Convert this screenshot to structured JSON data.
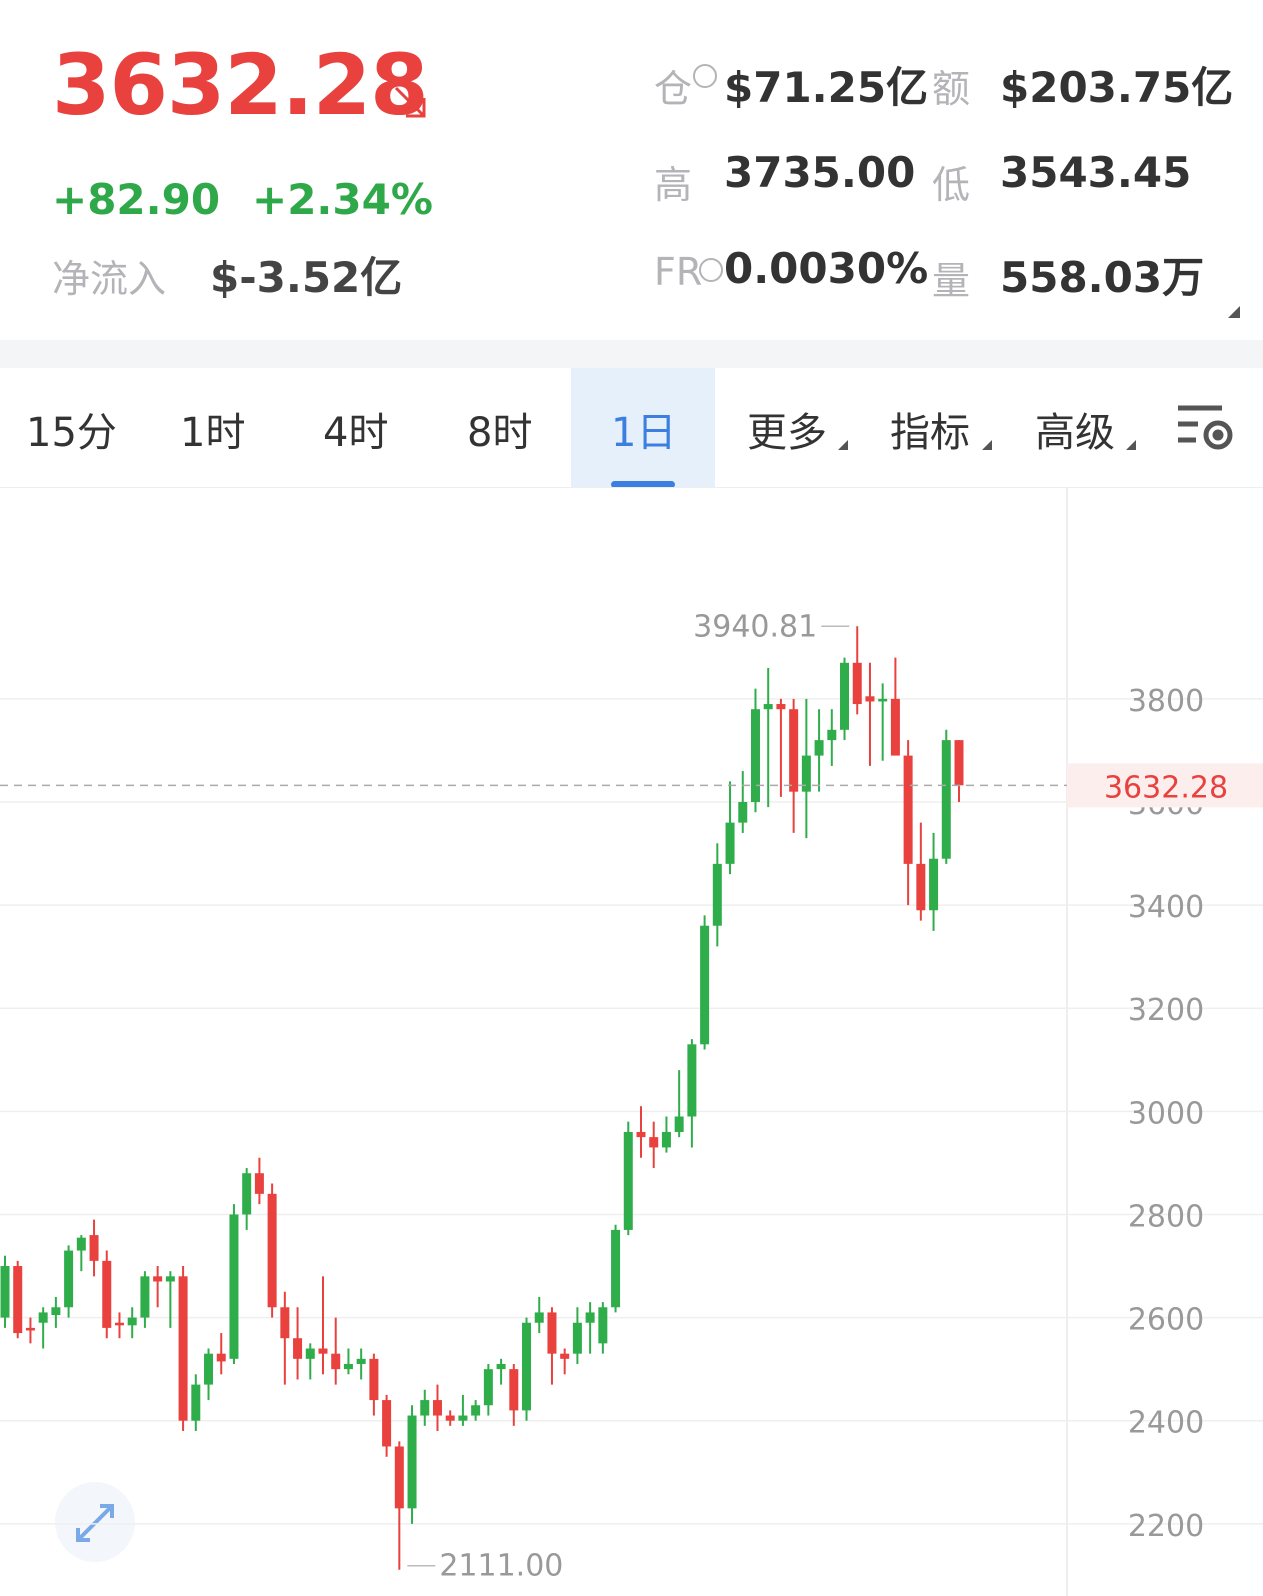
{
  "header": {
    "price": "3632.28",
    "change": "+82.90",
    "change_pct": "+2.34%",
    "net_inflow_label": "净流入",
    "net_inflow": "$-3.52亿",
    "stats": [
      {
        "label": "仓",
        "value": "$71.25亿"
      },
      {
        "label": "额",
        "value": "$203.75亿"
      },
      {
        "label": "高",
        "value": "3735.00"
      },
      {
        "label": "低",
        "value": "3543.45"
      },
      {
        "label": "FR",
        "value": "0.0030%"
      },
      {
        "label": "量",
        "value": "558.03万"
      }
    ]
  },
  "tabs": [
    "15分",
    "1时",
    "4时",
    "8时",
    "1日",
    "更多",
    "指标",
    "高级"
  ],
  "chart_data": {
    "type": "candlestick",
    "up_color": "#2fad4b",
    "down_color": "#e8413e",
    "ylim": [
      2060,
      4209
    ],
    "yticks": [
      2200,
      2400,
      2600,
      2800,
      3000,
      3200,
      3400,
      3600,
      3800
    ],
    "grid": true,
    "last_price": 3632.28,
    "high_label": "3940.81",
    "low_label": "2111.00",
    "open": [
      2600,
      2700,
      2580,
      2590,
      2605,
      2620,
      2730,
      2760,
      2710,
      2590,
      2585,
      2600,
      2680,
      2670,
      2680,
      2400,
      2470,
      2530,
      2520,
      2800,
      2880,
      2840,
      2620,
      2560,
      2520,
      2540,
      2530,
      2500,
      2510,
      2520,
      2440,
      2350,
      2230,
      2410,
      2440,
      2410,
      2400,
      2410,
      2430,
      2500,
      2500,
      2420,
      2590,
      2610,
      2530,
      2530,
      2590,
      2550,
      2620,
      2770,
      2960,
      2950,
      2930,
      2960,
      2990,
      3130,
      3360,
      3480,
      3560,
      3600,
      3780,
      3790,
      3780,
      3620,
      3690,
      3720,
      3740,
      3870,
      3805,
      3795,
      3800,
      3690,
      3480,
      3390,
      3490,
      3720
    ],
    "high": [
      2720,
      2710,
      2600,
      2620,
      2640,
      2740,
      2760,
      2790,
      2730,
      2610,
      2620,
      2690,
      2700,
      2690,
      2700,
      2490,
      2540,
      2570,
      2820,
      2890,
      2910,
      2860,
      2650,
      2620,
      2550,
      2680,
      2600,
      2540,
      2540,
      2530,
      2450,
      2360,
      2430,
      2460,
      2470,
      2420,
      2450,
      2440,
      2510,
      2520,
      2510,
      2600,
      2640,
      2620,
      2540,
      2620,
      2630,
      2630,
      2780,
      2980,
      3010,
      2980,
      2990,
      3080,
      3140,
      3380,
      3520,
      3640,
      3660,
      3820,
      3860,
      3800,
      3800,
      3800,
      3780,
      3780,
      3880,
      3940.81,
      3870,
      3830,
      3880,
      3720,
      3560,
      3540,
      3740,
      3720
    ],
    "low": [
      2580,
      2560,
      2550,
      2540,
      2580,
      2600,
      2690,
      2680,
      2560,
      2560,
      2560,
      2580,
      2620,
      2580,
      2380,
      2380,
      2440,
      2490,
      2510,
      2770,
      2820,
      2600,
      2470,
      2480,
      2480,
      2490,
      2470,
      2490,
      2480,
      2410,
      2330,
      2111,
      2200,
      2390,
      2380,
      2390,
      2390,
      2400,
      2410,
      2470,
      2390,
      2400,
      2570,
      2470,
      2490,
      2510,
      2530,
      2530,
      2610,
      2760,
      2910,
      2890,
      2920,
      2950,
      2930,
      3120,
      3320,
      3460,
      3540,
      3580,
      3590,
      3610,
      3540,
      3530,
      3620,
      3670,
      3720,
      3770,
      3670,
      3680,
      3700,
      3400,
      3370,
      3350,
      3480,
      3600
    ],
    "close": [
      2700,
      2570,
      2575,
      2610,
      2620,
      2730,
      2755,
      2710,
      2580,
      2585,
      2600,
      2680,
      2670,
      2680,
      2400,
      2470,
      2530,
      2515,
      2800,
      2880,
      2840,
      2620,
      2560,
      2520,
      2540,
      2530,
      2500,
      2510,
      2520,
      2440,
      2350,
      2230,
      2410,
      2440,
      2410,
      2400,
      2410,
      2430,
      2500,
      2510,
      2420,
      2590,
      2610,
      2530,
      2520,
      2590,
      2610,
      2620,
      2770,
      2960,
      2950,
      2930,
      2960,
      2990,
      3130,
      3360,
      3480,
      3560,
      3600,
      3780,
      3790,
      3780,
      3620,
      3690,
      3720,
      3740,
      3870,
      3790,
      3795,
      3800,
      3690,
      3480,
      3390,
      3490,
      3720,
      3632.28
    ]
  }
}
